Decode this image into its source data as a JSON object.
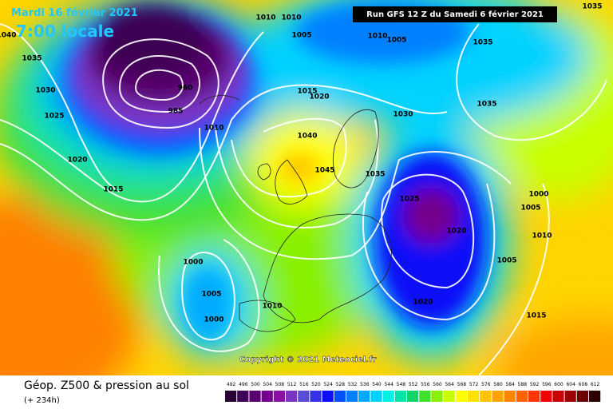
{
  "header": {
    "date": "Mardi 16 février 2021",
    "time": "7:00 locale",
    "run": "Run GFS 12 Z du Samedi 6 février 2021"
  },
  "footer": {
    "title": "Géop. Z500 & pression au sol",
    "lead": "(+ 234h)",
    "copyright": "Copyright © 2021 Meteociel.fr"
  },
  "legend": {
    "ticks": [
      492,
      496,
      500,
      504,
      508,
      512,
      516,
      520,
      524,
      528,
      532,
      536,
      540,
      544,
      548,
      552,
      556,
      560,
      564,
      568,
      572,
      576,
      580,
      584,
      588,
      592,
      596,
      600,
      604,
      608,
      612
    ],
    "colors": [
      "#2a0034",
      "#3e0052",
      "#58006e",
      "#74008c",
      "#8a10a8",
      "#7a34c4",
      "#5a4cd8",
      "#3434e6",
      "#0a10f8",
      "#0050ff",
      "#0080ff",
      "#00aaff",
      "#00d2ff",
      "#00f0e6",
      "#00e4a8",
      "#10d468",
      "#40e030",
      "#88f000",
      "#c8ff00",
      "#ffff00",
      "#ffe200",
      "#ffc400",
      "#ffa400",
      "#ff8400",
      "#ff6000",
      "#ff3400",
      "#f00000",
      "#c80000",
      "#9a0000",
      "#6a0000",
      "#2a0000"
    ]
  },
  "isobar_labels": [
    "1010",
    "1010",
    "1015",
    "1035",
    "1040",
    "1035",
    "1005",
    "1010",
    "1005",
    "1035",
    "1030",
    "1025",
    "1015",
    "1020",
    "1010",
    "1030",
    "1035",
    "1040",
    "1020",
    "1045",
    "1035",
    "1015",
    "1025",
    "1000",
    "1005",
    "1020",
    "1010",
    "1000",
    "1005",
    "1005",
    "1010",
    "1020",
    "1000",
    "1015",
    "960",
    "985"
  ]
}
